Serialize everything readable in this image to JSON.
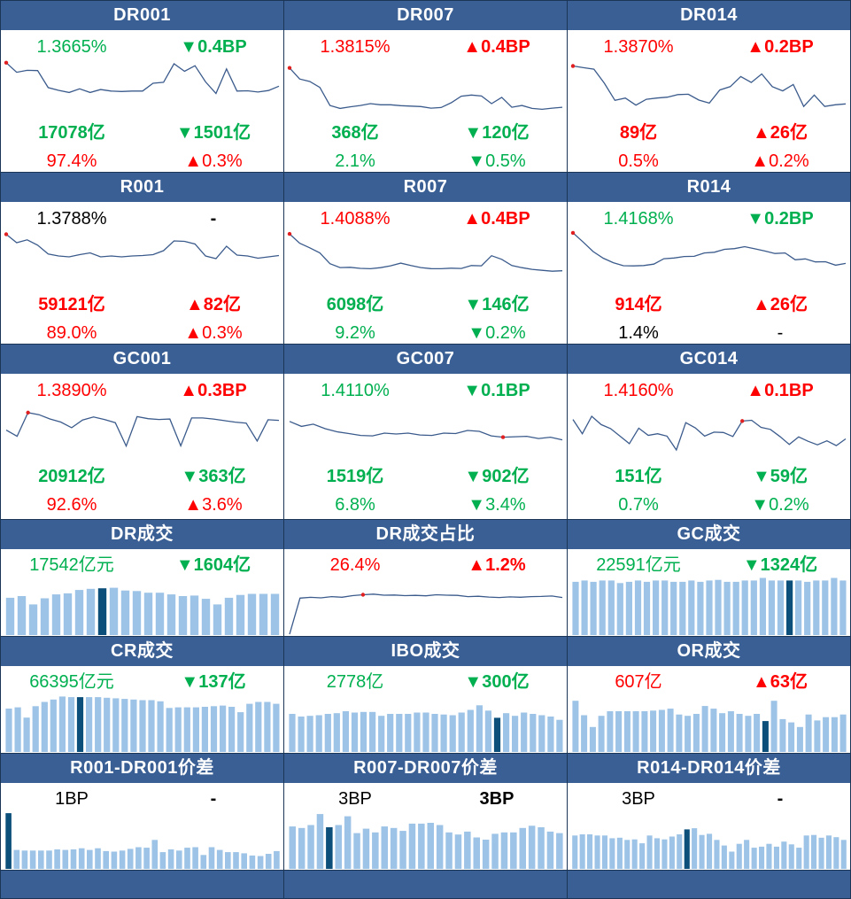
{
  "colors": {
    "up": "#ff0000",
    "down": "#00b050",
    "neutral": "#000000",
    "header_bg": "#3a5f94",
    "line": "#3b5b8c",
    "bar": "#9dc3e6",
    "bar_highlight": "#0b4f7a"
  },
  "panels": [
    {
      "id": "dr001",
      "title": "DR001",
      "type": "line",
      "rate": {
        "text": "1.3665%",
        "dir": "down"
      },
      "rate_change": {
        "text": "0.4BP",
        "dir": "down"
      },
      "volume": {
        "text": "17078亿",
        "dir": "down"
      },
      "volume_change": {
        "text": "1501亿",
        "dir": "down"
      },
      "share": {
        "text": "97.4%",
        "dir": "up"
      },
      "share_change": {
        "text": "0.3%",
        "dir": "up"
      },
      "chart_data": {
        "type": "line",
        "values": [
          1.4058,
          1.386,
          1.39,
          1.3895,
          1.3545,
          1.349,
          1.3445,
          1.352,
          1.3445,
          1.3505,
          1.3475,
          1.3465,
          1.3475,
          1.3475,
          1.3635,
          1.3655,
          1.4035,
          1.388,
          1.3995,
          1.3665,
          1.3425,
          1.393,
          1.3475,
          1.348,
          1.3455,
          1.3485,
          1.3575
        ],
        "ylim": [
          1.2925,
          1.4163
        ],
        "marker_index": 0
      }
    },
    {
      "id": "dr007",
      "title": "DR007",
      "type": "line",
      "rate": {
        "text": "1.3815%",
        "dir": "up"
      },
      "rate_change": {
        "text": "0.4BP",
        "dir": "up"
      },
      "volume": {
        "text": "368亿",
        "dir": "down"
      },
      "volume_change": {
        "text": "120亿",
        "dir": "down"
      },
      "share": {
        "text": "2.1%",
        "dir": "down"
      },
      "share_change": {
        "text": "0.5%",
        "dir": "down"
      },
      "chart_data": {
        "type": "line",
        "values": [
          1.4905,
          1.466,
          1.4605,
          1.4475,
          1.4075,
          1.401,
          1.4045,
          1.4075,
          1.4115,
          1.409,
          1.409,
          1.407,
          1.406,
          1.405,
          1.4015,
          1.403,
          1.4135,
          1.428,
          1.4305,
          1.4285,
          1.4115,
          1.4255,
          1.4035,
          1.4075,
          1.401,
          1.399,
          1.4015,
          1.4035
        ],
        "ylim": [
          1.3802,
          1.5135
        ],
        "marker_index": 0
      }
    },
    {
      "id": "dr014",
      "title": "DR014",
      "type": "line",
      "rate": {
        "text": "1.3870%",
        "dir": "up"
      },
      "rate_change": {
        "text": "0.2BP",
        "dir": "up"
      },
      "volume": {
        "text": "89亿",
        "dir": "up"
      },
      "volume_change": {
        "text": "26亿",
        "dir": "up"
      },
      "share": {
        "text": "0.5%",
        "dir": "up"
      },
      "share_change": {
        "text": "0.2%",
        "dir": "up"
      },
      "chart_data": {
        "type": "line",
        "values": [
          1.5125,
          1.5085,
          1.505,
          1.4715,
          1.431,
          1.4365,
          1.4195,
          1.4335,
          1.4365,
          1.4385,
          1.4445,
          1.4455,
          1.4315,
          1.4245,
          1.4555,
          1.4635,
          1.4875,
          1.4735,
          1.4935,
          1.4635,
          1.4535,
          1.4685,
          1.4165,
          1.4435,
          1.4165,
          1.4205,
          1.4225
        ],
        "ylim": [
          1.3895,
          1.5325
        ],
        "marker_index": 0
      }
    },
    {
      "id": "r001",
      "title": "R001",
      "type": "line",
      "rate": {
        "text": "1.3788%",
        "dir": "neutral"
      },
      "rate_change": {
        "text": "-",
        "dir": "neutral"
      },
      "volume": {
        "text": "59121亿",
        "dir": "up"
      },
      "volume_change": {
        "text": "82亿",
        "dir": "up"
      },
      "share": {
        "text": "89.0%",
        "dir": "up"
      },
      "share_change": {
        "text": "0.3%",
        "dir": "up"
      },
      "chart_data": {
        "type": "line",
        "values": [
          1.4195,
          1.4005,
          1.407,
          1.395,
          1.375,
          1.3705,
          1.3685,
          1.3735,
          1.3775,
          1.3685,
          1.3705,
          1.3685,
          1.3705,
          1.3715,
          1.3735,
          1.3825,
          1.4045,
          1.4035,
          1.3975,
          1.3705,
          1.3645,
          1.3925,
          1.3725,
          1.3705,
          1.3655,
          1.3685,
          1.3715
        ],
        "ylim": [
          1.2945,
          1.4305
        ],
        "marker_index": 0
      }
    },
    {
      "id": "r007",
      "title": "R007",
      "type": "line",
      "rate": {
        "text": "1.4088%",
        "dir": "up"
      },
      "rate_change": {
        "text": "0.4BP",
        "dir": "up"
      },
      "volume": {
        "text": "6098亿",
        "dir": "down"
      },
      "volume_change": {
        "text": "146亿",
        "dir": "down"
      },
      "share": {
        "text": "9.2%",
        "dir": "down"
      },
      "share_change": {
        "text": "0.2%",
        "dir": "down"
      },
      "chart_data": {
        "type": "line",
        "values": [
          1.9595,
          1.8875,
          1.8515,
          1.8125,
          1.7285,
          1.6985,
          1.7005,
          1.6925,
          1.6895,
          1.6975,
          1.7125,
          1.7325,
          1.7145,
          1.6985,
          1.6905,
          1.6895,
          1.6935,
          1.6915,
          1.7145,
          1.7125,
          1.7905,
          1.7625,
          1.7145,
          1.6975,
          1.6845,
          1.6775,
          1.6705,
          1.6735
        ],
        "ylim": [
          1.5275,
          1.9945
        ],
        "marker_index": 0
      }
    },
    {
      "id": "r014",
      "title": "R014",
      "type": "line",
      "rate": {
        "text": "1.4168%",
        "dir": "down"
      },
      "rate_change": {
        "text": "0.2BP",
        "dir": "down"
      },
      "volume": {
        "text": "914亿",
        "dir": "up"
      },
      "volume_change": {
        "text": "26亿",
        "dir": "up"
      },
      "share": {
        "text": "1.4%",
        "dir": "neutral"
      },
      "share_change": {
        "text": "-",
        "dir": "neutral"
      },
      "chart_data": {
        "type": "line",
        "values": [
          1.8895,
          1.8375,
          1.7825,
          1.7445,
          1.7185,
          1.7015,
          1.7005,
          1.7025,
          1.7105,
          1.7415,
          1.7455,
          1.7545,
          1.7555,
          1.7745,
          1.7785,
          1.7955,
          1.7995,
          1.8105,
          1.7985,
          1.7855,
          1.7715,
          1.7745,
          1.7355,
          1.7405,
          1.7235,
          1.7245,
          1.7045,
          1.7145
        ],
        "ylim": [
          1.5645,
          1.9095
        ],
        "marker_index": 0
      }
    },
    {
      "id": "gc001",
      "title": "GC001",
      "type": "line",
      "rate": {
        "text": "1.3890%",
        "dir": "up"
      },
      "rate_change": {
        "text": "0.3BP",
        "dir": "up"
      },
      "volume": {
        "text": "20912亿",
        "dir": "down"
      },
      "volume_change": {
        "text": "363亿",
        "dir": "down"
      },
      "share": {
        "text": "92.6%",
        "dir": "up"
      },
      "share_change": {
        "text": "3.6%",
        "dir": "up"
      },
      "chart_data": {
        "type": "line",
        "values": [
          2.3255,
          2.2515,
          2.5335,
          2.5095,
          2.4585,
          2.4215,
          2.3535,
          2.4455,
          2.4815,
          2.4515,
          2.4135,
          2.1355,
          2.4855,
          2.4615,
          2.4515,
          2.4575,
          2.1375,
          2.4695,
          2.4695,
          2.4575,
          2.4385,
          2.4205,
          2.4085,
          2.1955,
          2.4485,
          2.4415
        ],
        "ylim": [
          1.9515,
          2.6695
        ],
        "marker_index": 2
      }
    },
    {
      "id": "gc007",
      "title": "GC007",
      "type": "line",
      "rate": {
        "text": "1.4110%",
        "dir": "down"
      },
      "rate_change": {
        "text": "0.1BP",
        "dir": "down"
      },
      "volume": {
        "text": "1519亿",
        "dir": "down"
      },
      "volume_change": {
        "text": "902亿",
        "dir": "down"
      },
      "share": {
        "text": "6.8%",
        "dir": "down"
      },
      "share_change": {
        "text": "3.4%",
        "dir": "down"
      },
      "chart_data": {
        "type": "line",
        "values": [
          2.1705,
          2.1595,
          2.1645,
          2.1545,
          2.1475,
          2.1435,
          2.1395,
          2.1385,
          2.1445,
          2.1425,
          2.1445,
          2.1405,
          2.1395,
          2.1445,
          2.1435,
          2.1505,
          2.1485,
          2.1385,
          2.1355,
          2.1365,
          2.1375,
          2.1325,
          2.1355,
          2.1295
        ],
        "ylim": [
          2.0815,
          2.2155
        ],
        "marker_index": 18
      }
    },
    {
      "id": "gc014",
      "title": "GC014",
      "type": "line",
      "rate": {
        "text": "1.4160%",
        "dir": "up"
      },
      "rate_change": {
        "text": "0.1BP",
        "dir": "up"
      },
      "volume": {
        "text": "151亿",
        "dir": "down"
      },
      "volume_change": {
        "text": "59亿",
        "dir": "down"
      },
      "share": {
        "text": "0.7%",
        "dir": "down"
      },
      "share_change": {
        "text": "0.2%",
        "dir": "down"
      },
      "chart_data": {
        "type": "line",
        "values": [
          2.2045,
          2.1685,
          2.2125,
          2.1915,
          2.1815,
          2.1625,
          2.1435,
          2.1825,
          2.1645,
          2.1685,
          2.1625,
          2.1275,
          2.1965,
          2.1835,
          2.1625,
          2.1725,
          2.1715,
          2.1615,
          2.2005,
          2.2025,
          2.1845,
          2.1795,
          2.1615,
          2.1415,
          2.1605,
          2.1495,
          2.1405,
          2.1505,
          2.1385,
          2.1555
        ],
        "ylim": [
          2.0985,
          2.2505
        ],
        "marker_index": 18
      }
    },
    {
      "id": "dr_vol",
      "title": "DR成交",
      "type": "bar",
      "main": {
        "text": "17542亿元",
        "dir": "down"
      },
      "change": {
        "text": "1604亿",
        "dir": "down"
      },
      "chart_data": {
        "type": "bar",
        "values": [
          67,
          70,
          55,
          66,
          73,
          75,
          81,
          83,
          84,
          85,
          80,
          79,
          76,
          76,
          73,
          70,
          71,
          65,
          55,
          67,
          72,
          74,
          74,
          74
        ],
        "ylim": [
          0,
          105
        ],
        "highlight_index": 8
      }
    },
    {
      "id": "dr_share",
      "title": "DR成交占比",
      "type": "line",
      "main": {
        "text": "26.4%",
        "dir": "up"
      },
      "change": {
        "text": "1.2%",
        "dir": "up"
      },
      "chart_data": {
        "type": "line",
        "values": [
          0.5,
          24.0,
          24.5,
          24.2,
          25.0,
          24.6,
          25.6,
          26.2,
          26.6,
          25.9,
          26.0,
          25.6,
          25.8,
          25.5,
          26.2,
          25.9,
          25.8,
          25.0,
          25.2,
          24.7,
          24.4,
          24.8,
          24.6,
          25.0,
          25.1,
          25.4,
          24.4
        ],
        "ylim": [
          0,
          38
        ],
        "marker_index": 7
      }
    },
    {
      "id": "gc_vol",
      "title": "GC成交",
      "type": "bar",
      "main": {
        "text": "22591亿元",
        "dir": "down"
      },
      "change": {
        "text": "1324亿",
        "dir": "down"
      },
      "chart_data": {
        "type": "bar",
        "values": [
          82,
          84,
          82,
          84,
          84,
          80,
          82,
          84,
          82,
          84,
          84,
          82,
          82,
          84,
          82,
          84,
          85,
          82,
          82,
          84,
          84,
          88,
          84,
          84,
          84,
          84,
          82,
          84,
          84,
          88,
          84
        ],
        "ylim": [
          0,
          90
        ],
        "highlight_index": 24
      }
    },
    {
      "id": "cr_vol",
      "title": "CR成交",
      "type": "bar",
      "main": {
        "text": "66395亿元",
        "dir": "down"
      },
      "change": {
        "text": "137亿",
        "dir": "down"
      },
      "chart_data": {
        "type": "bar",
        "values": [
          72,
          74,
          57,
          76,
          83,
          87,
          92,
          91,
          91,
          91,
          91,
          90,
          89,
          88,
          87,
          86,
          86,
          84,
          73,
          74,
          74,
          74,
          75,
          76,
          77,
          75,
          66,
          80,
          83,
          83,
          80
        ],
        "ylim": [
          0,
          97
        ],
        "highlight_index": 8
      }
    },
    {
      "id": "ibo_vol",
      "title": "IBO成交",
      "type": "bar",
      "main": {
        "text": "2778亿",
        "dir": "down"
      },
      "change": {
        "text": "300亿",
        "dir": "down"
      },
      "chart_data": {
        "type": "bar",
        "values": [
          58,
          54,
          55,
          56,
          58,
          59,
          62,
          60,
          61,
          61,
          55,
          58,
          58,
          58,
          60,
          60,
          58,
          57,
          56,
          60,
          64,
          71,
          63,
          52,
          59,
          55,
          60,
          58,
          56,
          54,
          49
        ],
        "ylim": [
          0,
          89
        ],
        "highlight_index": 23
      }
    },
    {
      "id": "or_vol",
      "title": "OR成交",
      "type": "bar",
      "main": {
        "text": "607亿",
        "dir": "up"
      },
      "change": {
        "text": "63亿",
        "dir": "up"
      },
      "chart_data": {
        "type": "bar",
        "values": [
          78,
          56,
          38,
          55,
          62,
          62,
          62,
          62,
          62,
          63,
          64,
          66,
          57,
          55,
          58,
          70,
          66,
          59,
          62,
          58,
          55,
          58,
          47,
          78,
          50,
          45,
          38,
          57,
          48,
          53,
          53,
          57
        ],
        "ylim": [
          0,
          89
        ],
        "highlight_index": 22
      }
    },
    {
      "id": "r001_spread",
      "title": "R001-DR001价差",
      "type": "bar",
      "main": {
        "text": "1BP",
        "dir": "neutral"
      },
      "change": {
        "text": "-",
        "dir": "neutral"
      },
      "chart_data": {
        "type": "bar",
        "values": [
          100,
          34,
          33,
          33,
          33,
          33,
          35,
          34,
          35,
          37,
          34,
          37,
          32,
          31,
          33,
          36,
          39,
          38,
          52,
          30,
          35,
          33,
          38,
          39,
          25,
          39,
          34,
          30,
          30,
          28,
          24,
          23,
          27,
          32
        ],
        "ylim": [
          0,
          105
        ],
        "highlight_index": 0
      }
    },
    {
      "id": "r007_spread",
      "title": "R007-DR007价差",
      "type": "bar",
      "main": {
        "text": "3BP",
        "dir": "neutral"
      },
      "change": {
        "text": "3BP",
        "dir": "neutral"
      },
      "chart_data": {
        "type": "bar",
        "values": [
          58,
          56,
          60,
          75,
          57,
          60,
          72,
          49,
          55,
          50,
          58,
          56,
          52,
          62,
          62,
          63,
          60,
          50,
          47,
          51,
          43,
          40,
          48,
          50,
          50,
          56,
          59,
          57,
          51,
          49
        ],
        "ylim": [
          0,
          80
        ],
        "highlight_index": 4
      }
    },
    {
      "id": "r014_spread",
      "title": "R014-DR014价差",
      "type": "bar",
      "main": {
        "text": "3BP",
        "dir": "neutral"
      },
      "change": {
        "text": "-",
        "dir": "neutral"
      },
      "chart_data": {
        "type": "bar",
        "values": [
          60,
          62,
          62,
          60,
          60,
          55,
          56,
          52,
          53,
          46,
          60,
          55,
          53,
          58,
          62,
          71,
          73,
          61,
          63,
          52,
          42,
          31,
          45,
          52,
          38,
          40,
          45,
          40,
          49,
          44,
          38,
          60,
          61,
          56,
          60,
          57,
          52
        ],
        "ylim": [
          0,
          105
        ],
        "highlight_index": 15
      }
    }
  ]
}
